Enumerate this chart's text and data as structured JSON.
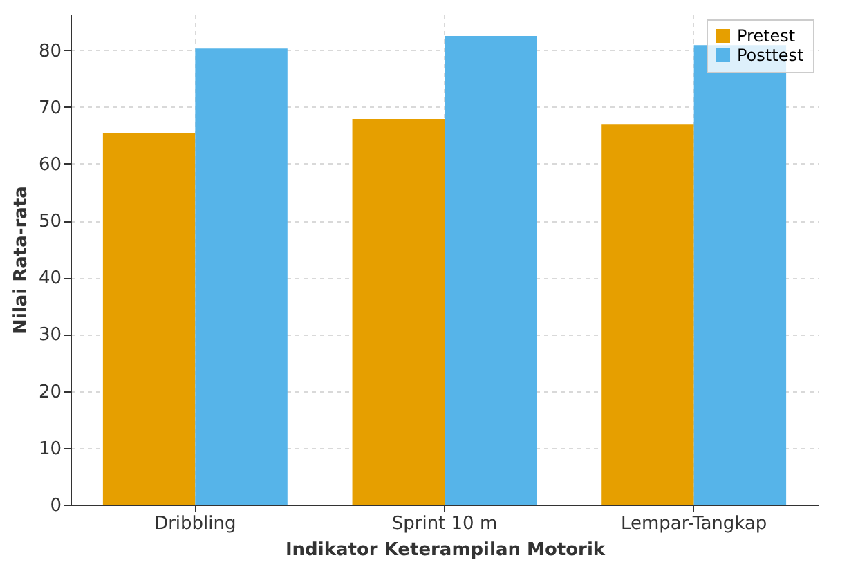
{
  "chart_data": {
    "type": "bar",
    "xlabel": "Indikator Keterampilan Motorik",
    "ylabel": "Nilai Rata-rata",
    "categories": [
      "Dribbling",
      "Sprint 10 m",
      "Lempar-Tangkap"
    ],
    "series": [
      {
        "name": "Pretest",
        "color": "#e69f00",
        "values": [
          65.4,
          67.9,
          66.9
        ]
      },
      {
        "name": "Posttest",
        "color": "#56b4e9",
        "values": [
          80.3,
          82.5,
          80.9
        ]
      }
    ],
    "ylim": [
      0,
      86.4
    ],
    "yticks": [
      0,
      10,
      20,
      30,
      40,
      50,
      60,
      70,
      80
    ],
    "grid": true,
    "legend": "top right"
  }
}
